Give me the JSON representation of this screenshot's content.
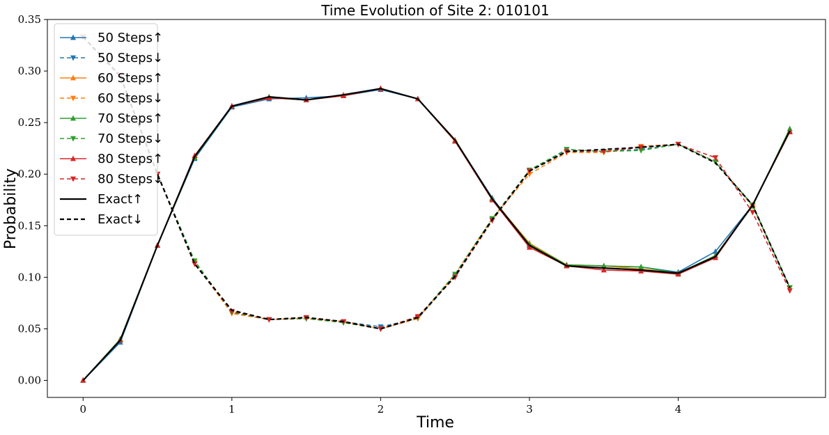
{
  "chart_data": {
    "type": "line",
    "title": "Time Evolution of Site 2: 010101",
    "xlabel": "Time",
    "ylabel": "Probability",
    "xlim": [
      -0.24,
      4.99
    ],
    "ylim": [
      -0.0165,
      0.35
    ],
    "xticks": [
      0,
      1,
      2,
      3,
      4
    ],
    "yticks": [
      "0.00",
      "0.05",
      "0.10",
      "0.15",
      "0.20",
      "0.25",
      "0.30",
      "0.35"
    ],
    "grid": false,
    "legend_position": "upper-left",
    "x": [
      0,
      0.25,
      0.5,
      0.75,
      1.0,
      1.25,
      1.5,
      1.75,
      2.0,
      2.25,
      2.5,
      2.75,
      3.0,
      3.25,
      3.5,
      3.75,
      4.0,
      4.25,
      4.5,
      4.75
    ],
    "series": [
      {
        "name": "50 Steps↑",
        "color": "#1f77b4",
        "dash": "solid",
        "marker": "triangle-up",
        "values": [
          0.0,
          0.037,
          0.131,
          0.215,
          0.265,
          0.273,
          0.274,
          0.276,
          0.282,
          0.273,
          0.233,
          0.177,
          0.131,
          0.112,
          0.111,
          0.11,
          0.105,
          0.125,
          0.17,
          0.242
        ]
      },
      {
        "name": "50 Steps↓",
        "color": "#1f77b4",
        "dash": "dashed",
        "marker": "triangle-down",
        "values": [
          0.333,
          0.295,
          0.2,
          0.113,
          0.066,
          0.059,
          0.06,
          0.057,
          0.052,
          0.06,
          0.101,
          0.156,
          0.203,
          0.224,
          0.222,
          0.224,
          0.229,
          0.212,
          0.17,
          0.09
        ]
      },
      {
        "name": "60 Steps↑",
        "color": "#ff7f0e",
        "dash": "solid",
        "marker": "triangle-up",
        "values": [
          0.0,
          0.04,
          0.131,
          0.217,
          0.266,
          0.274,
          0.272,
          0.277,
          0.283,
          0.273,
          0.233,
          0.176,
          0.133,
          0.112,
          0.111,
          0.108,
          0.104,
          0.121,
          0.17,
          0.241
        ]
      },
      {
        "name": "60 Steps↓",
        "color": "#ff7f0e",
        "dash": "dashed",
        "marker": "triangle-down",
        "values": [
          0.333,
          0.296,
          0.2,
          0.114,
          0.065,
          0.059,
          0.06,
          0.057,
          0.05,
          0.06,
          0.103,
          0.157,
          0.2,
          0.221,
          0.221,
          0.227,
          0.229,
          0.212,
          0.169,
          0.09
        ]
      },
      {
        "name": "70 Steps↑",
        "color": "#2ca02c",
        "dash": "solid",
        "marker": "triangle-up",
        "values": [
          0.0,
          0.04,
          0.131,
          0.216,
          0.266,
          0.275,
          0.272,
          0.276,
          0.283,
          0.273,
          0.232,
          0.176,
          0.132,
          0.112,
          0.111,
          0.11,
          0.104,
          0.121,
          0.169,
          0.244
        ]
      },
      {
        "name": "70 Steps↓",
        "color": "#2ca02c",
        "dash": "dashed",
        "marker": "triangle-down",
        "values": [
          0.333,
          0.296,
          0.2,
          0.116,
          0.066,
          0.059,
          0.06,
          0.056,
          0.05,
          0.061,
          0.103,
          0.157,
          0.204,
          0.224,
          0.222,
          0.223,
          0.229,
          0.212,
          0.17,
          0.09
        ]
      },
      {
        "name": "80 Steps↑",
        "color": "#d62728",
        "dash": "solid",
        "marker": "triangle-up",
        "values": [
          0.0,
          0.039,
          0.131,
          0.218,
          0.266,
          0.274,
          0.272,
          0.276,
          0.283,
          0.273,
          0.232,
          0.175,
          0.129,
          0.111,
          0.107,
          0.106,
          0.103,
          0.119,
          0.17,
          0.241
        ]
      },
      {
        "name": "80 Steps↓",
        "color": "#d62728",
        "dash": "dashed",
        "marker": "triangle-down",
        "values": [
          0.333,
          0.296,
          0.2,
          0.113,
          0.067,
          0.059,
          0.061,
          0.057,
          0.05,
          0.062,
          0.1,
          0.155,
          0.203,
          0.222,
          0.222,
          0.226,
          0.229,
          0.216,
          0.163,
          0.087
        ]
      },
      {
        "name": "Exact↑",
        "color": "#000000",
        "dash": "solid",
        "marker": "none",
        "values": [
          0.0,
          0.039,
          0.131,
          0.217,
          0.266,
          0.275,
          0.272,
          0.277,
          0.283,
          0.273,
          0.233,
          0.176,
          0.131,
          0.111,
          0.109,
          0.107,
          0.104,
          0.12,
          0.17,
          0.242
        ]
      },
      {
        "name": "Exact↓",
        "color": "#000000",
        "dash": "dashed",
        "marker": "none",
        "values": [
          0.333,
          0.295,
          0.2,
          0.113,
          0.068,
          0.059,
          0.061,
          0.057,
          0.05,
          0.061,
          0.101,
          0.156,
          0.203,
          0.222,
          0.224,
          0.226,
          0.229,
          0.211,
          0.17,
          0.09
        ]
      }
    ]
  }
}
